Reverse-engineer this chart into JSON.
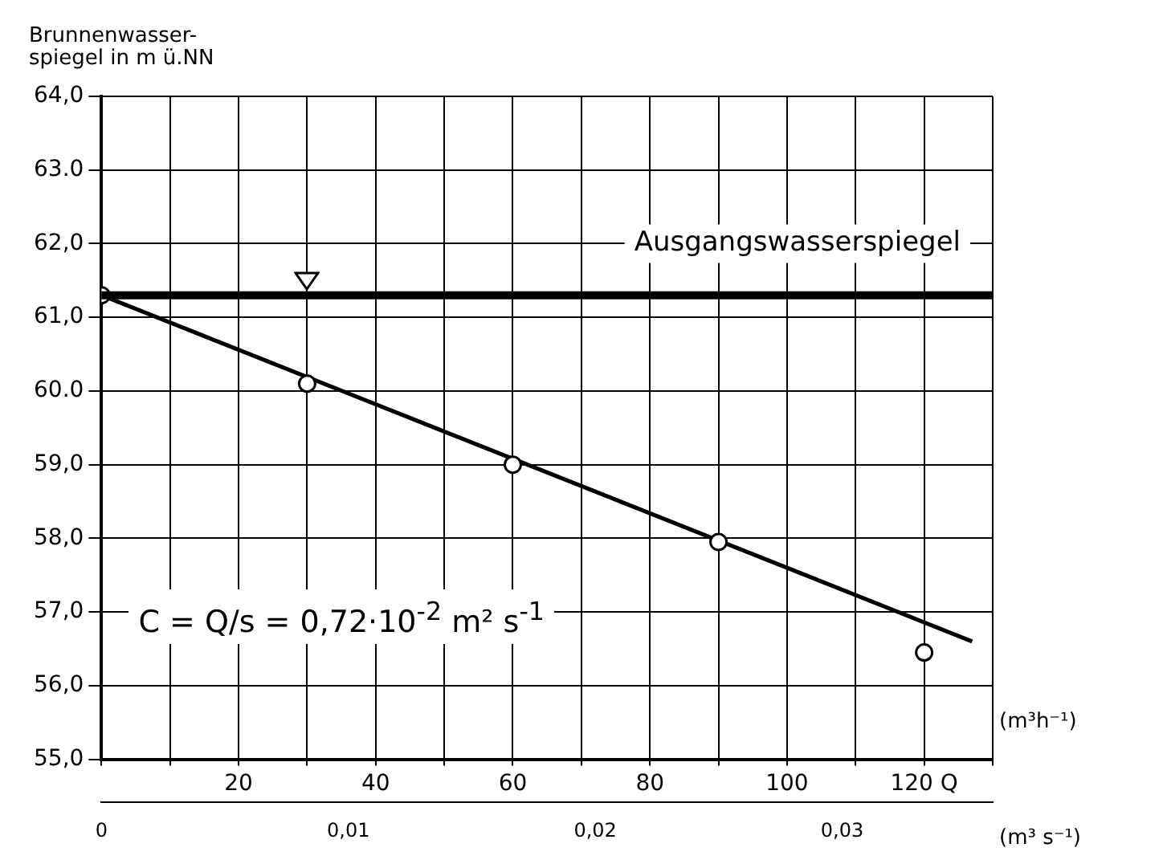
{
  "chart_data": {
    "type": "scatter",
    "ylabel": "Brunnenwasser-\nspiegel in m ü.NN",
    "xlabel": "(m³h⁻¹)",
    "x2label": "(m³ s⁻¹)",
    "series": [
      {
        "type": "scatter",
        "color": "#000000",
        "x": [
          0,
          30,
          60,
          90,
          120
        ],
        "values": [
          61.3,
          60.1,
          59.0,
          57.95,
          56.45
        ],
        "marker": "circle"
      },
      {
        "type": "line",
        "color": "#000000",
        "x": [
          0,
          127
        ],
        "values": [
          61.3,
          56.6
        ],
        "marker": "none",
        "line_style": "solid"
      }
    ],
    "xlim": [
      0,
      130
    ],
    "xticks": [
      {
        "value": 0,
        "label": null
      },
      {
        "value": 10,
        "label": null
      },
      20,
      {
        "value": 30,
        "label": null
      },
      40,
      {
        "value": 50,
        "label": null
      },
      60,
      {
        "value": 70,
        "label": null
      },
      80,
      {
        "value": 90,
        "label": null
      },
      100,
      {
        "value": 110,
        "label": null
      },
      {
        "value": 120,
        "label": "120 Q"
      },
      {
        "value": 130,
        "label": null
      }
    ],
    "x2lim": [
      0,
      0.0361
    ],
    "x2ticks": [
      {
        "value": 0,
        "label": "0"
      },
      {
        "value": 0.01,
        "label": "0,01"
      },
      {
        "value": 0.02,
        "label": "0,02"
      },
      {
        "value": 0.03,
        "label": "0,03"
      }
    ],
    "ylim": [
      55,
      64
    ],
    "yticks": [
      {
        "value": 55,
        "label": "55,0"
      },
      {
        "value": 56,
        "label": "56,0"
      },
      {
        "value": 57,
        "label": "57,0"
      },
      {
        "value": 58,
        "label": "58,0"
      },
      {
        "value": 59,
        "label": "59,0"
      },
      {
        "value": 60,
        "label": "60.0"
      },
      {
        "value": 61,
        "label": "61,0"
      },
      {
        "value": 62,
        "label": "62,0"
      },
      {
        "value": 63,
        "label": "63.0"
      },
      {
        "value": 64,
        "label": "64,0"
      }
    ],
    "ref_lines": [
      {
        "axis": "y",
        "value": 61.3,
        "label": "Ausgangswasserspiegel",
        "color": "#000000"
      }
    ],
    "annotations": [
      "C = Q/s = 0,72·10$^{-2}$ m² s$^{-1}$"
    ],
    "grid": true,
    "legend": false
  }
}
